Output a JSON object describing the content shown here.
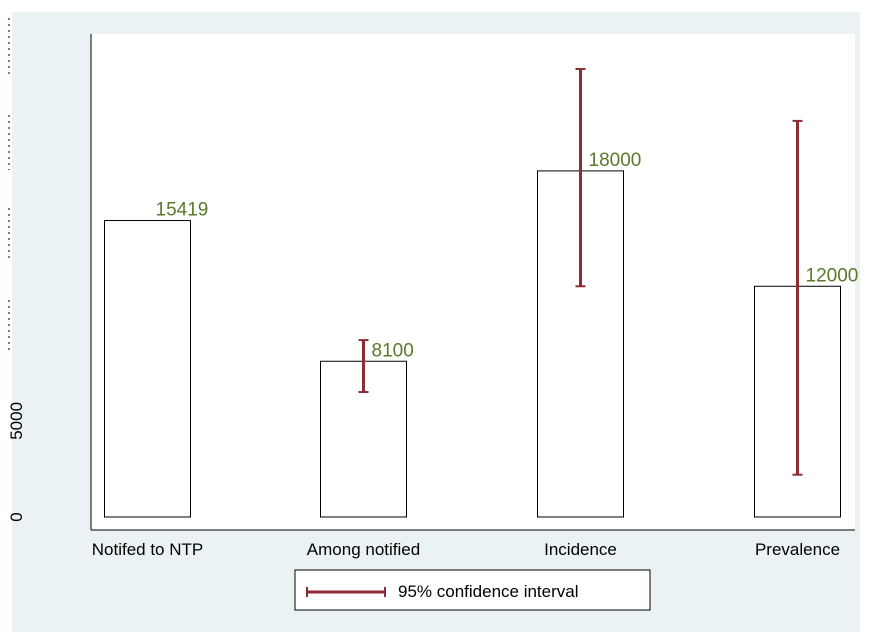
{
  "colors": {
    "background": "#eaf2f3",
    "plot_background": "#ffffff",
    "bar_outline": "#000000",
    "bar_fill": "#ffffff",
    "error_bar": "#8b2e33",
    "data_label": "#5a7a2a"
  },
  "chart_data": {
    "type": "bar",
    "title": "",
    "xlabel": "",
    "ylabel": "",
    "categories": [
      "Notifed to NTP",
      "Among notified",
      "Incidence",
      "Prevalence"
    ],
    "values": [
      15419,
      8100,
      18000,
      12000
    ],
    "value_labels": [
      "15419",
      "8100",
      "18000",
      "12000"
    ],
    "ci_low": [
      null,
      6500,
      12000,
      2200
    ],
    "ci_high": [
      null,
      9200,
      23300,
      20600
    ],
    "yticks": [
      0,
      5000
    ],
    "ytick_labels": [
      "0",
      "5000"
    ],
    "ylim": [
      0,
      24000
    ],
    "grid": false,
    "legend": {
      "position": "bottom",
      "entries": [
        {
          "label": "95% confidence interval",
          "marker": "error-bar"
        }
      ]
    }
  }
}
